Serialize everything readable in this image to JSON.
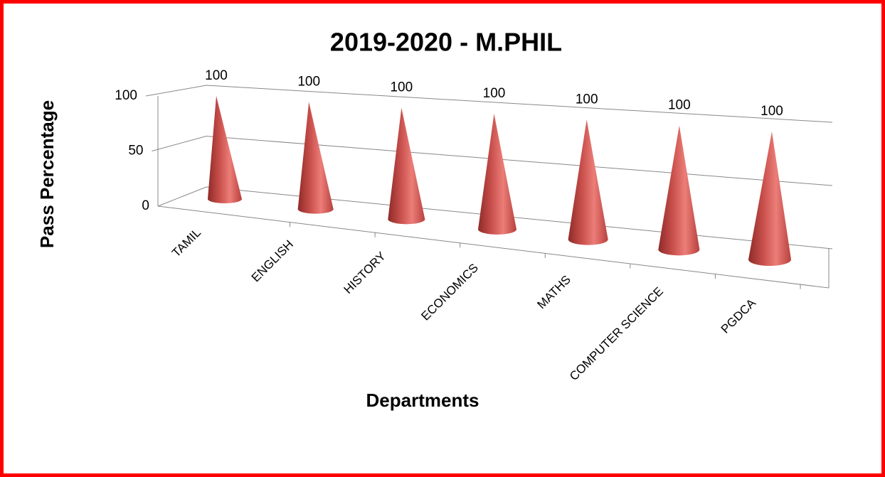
{
  "chart_data": {
    "type": "bar",
    "title": "2019-2020 - M.PHIL",
    "x_label": "Departments",
    "y_label": "Pass Percentage",
    "categories": [
      "TAMIL",
      "ENGLISH",
      "HISTORY",
      "ECONOMICS",
      "MATHS",
      "COMPUTER SCIENCE",
      "PGDCA"
    ],
    "values": [
      100,
      100,
      100,
      100,
      100,
      100,
      100
    ],
    "color": "#d9534f",
    "ylim": [
      0,
      100
    ],
    "yticks": [
      0,
      50,
      100
    ],
    "grid": true
  }
}
